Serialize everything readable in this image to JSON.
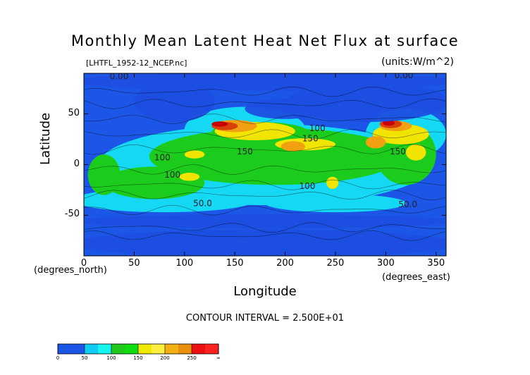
{
  "chart_data": {
    "type": "heatmap",
    "title": "Monthly Mean Latent Heat Net Flux at surface",
    "file_label": "[LHTFL_1952-12_NCEP.nc]",
    "units_label": "(units:W/m^2)",
    "xlabel": "Longitude",
    "ylabel": "Latitude",
    "x_units": "(degrees_east)",
    "y_units": "(degrees_north)",
    "xlim": [
      0,
      360
    ],
    "ylim": [
      -90,
      90
    ],
    "x_ticks": [
      "0",
      "50",
      "100",
      "150",
      "200",
      "250",
      "300",
      "350"
    ],
    "x_tick_values": [
      0,
      50,
      100,
      150,
      200,
      250,
      300,
      350
    ],
    "y_ticks": [
      "50",
      "0",
      "-50"
    ],
    "y_tick_values": [
      50,
      0,
      -50
    ],
    "contour_interval_text": "CONTOUR INTERVAL = 2.500E+01",
    "contour_labels": [
      {
        "text": "0.00",
        "lon": 35,
        "lat": 84
      },
      {
        "text": "0.00",
        "lon": 300,
        "lat": 90
      },
      {
        "text": "0.00",
        "lon": 318,
        "lat": 85
      },
      {
        "text": "150",
        "lon": 160,
        "lat": 10
      },
      {
        "text": "150",
        "lon": 225,
        "lat": 23
      },
      {
        "text": "150",
        "lon": 312,
        "lat": 10
      },
      {
        "text": "100",
        "lon": 78,
        "lat": 4
      },
      {
        "text": "100",
        "lon": 88,
        "lat": -13
      },
      {
        "text": "100",
        "lon": 232,
        "lat": 33
      },
      {
        "text": "100",
        "lon": 222,
        "lat": -24
      },
      {
        "text": "50.0",
        "lon": 118,
        "lat": -41
      },
      {
        "text": "50.0",
        "lon": 322,
        "lat": -42
      }
    ],
    "colorbar": {
      "levels": [
        "0",
        "50",
        "100",
        "150",
        "200",
        "250",
        "∞"
      ],
      "colors": [
        "#1c56e6",
        "#1c56e6",
        "#10ccf2",
        "#16f4ee",
        "#22c81c",
        "#10dc10",
        "#f0ea00",
        "#ffee40",
        "#f2b012",
        "#e8900c",
        "#ee1010",
        "#ff2020"
      ]
    },
    "palette": {
      "ocean_low": "#1c56e6",
      "land": "#1e4ee2",
      "b50": "#14d8f4",
      "b100": "#1ccc1c",
      "b150": "#f0e400",
      "b200": "#f0a010",
      "b250": "#d84008",
      "b275": "#c80000"
    },
    "blobs": [
      {
        "band": "b50",
        "lon": 180,
        "lat": 0,
        "rx": 165,
        "ry": 40
      },
      {
        "band": "b50",
        "lon": 160,
        "lat": 35,
        "rx": 60,
        "ry": 22
      },
      {
        "band": "b50",
        "lon": 320,
        "lat": 30,
        "rx": 40,
        "ry": 25
      },
      {
        "band": "b50",
        "lon": 80,
        "lat": -35,
        "rx": 90,
        "ry": 12
      },
      {
        "band": "b50",
        "lon": 250,
        "lat": -38,
        "rx": 70,
        "ry": 9
      },
      {
        "band": "b100",
        "lon": 190,
        "lat": 8,
        "rx": 125,
        "ry": 28
      },
      {
        "band": "b100",
        "lon": 70,
        "lat": -18,
        "rx": 50,
        "ry": 16
      },
      {
        "band": "b100",
        "lon": 20,
        "lat": -10,
        "rx": 16,
        "ry": 20
      },
      {
        "band": "b100",
        "lon": 320,
        "lat": 10,
        "rx": 30,
        "ry": 30
      },
      {
        "band": "b100",
        "lon": 175,
        "lat": 32,
        "rx": 48,
        "ry": 10
      },
      {
        "band": "b150",
        "lon": 170,
        "lat": 33,
        "rx": 40,
        "ry": 9
      },
      {
        "band": "b150",
        "lon": 220,
        "lat": 20,
        "rx": 30,
        "ry": 6
      },
      {
        "band": "b150",
        "lon": 315,
        "lat": 30,
        "rx": 28,
        "ry": 10
      },
      {
        "band": "b150",
        "lon": 330,
        "lat": 12,
        "rx": 10,
        "ry": 8
      },
      {
        "band": "b150",
        "lon": 105,
        "lat": -12,
        "rx": 10,
        "ry": 4
      },
      {
        "band": "b150",
        "lon": 247,
        "lat": -18,
        "rx": 6,
        "ry": 6
      },
      {
        "band": "b150",
        "lon": 110,
        "lat": 10,
        "rx": 10,
        "ry": 4
      },
      {
        "band": "b200",
        "lon": 208,
        "lat": 18,
        "rx": 12,
        "ry": 5
      },
      {
        "band": "b200",
        "lon": 290,
        "lat": 22,
        "rx": 10,
        "ry": 6
      },
      {
        "band": "b200",
        "lon": 150,
        "lat": 38,
        "rx": 22,
        "ry": 6
      },
      {
        "band": "b200",
        "lon": 310,
        "lat": 38,
        "rx": 16,
        "ry": 5
      },
      {
        "band": "b250",
        "lon": 140,
        "lat": 38,
        "rx": 13,
        "ry": 4
      },
      {
        "band": "b250",
        "lon": 305,
        "lat": 40,
        "rx": 11,
        "ry": 4
      },
      {
        "band": "b275",
        "lon": 135,
        "lat": 40,
        "rx": 8,
        "ry": 2.6
      },
      {
        "band": "b275",
        "lon": 303,
        "lat": 41,
        "rx": 6,
        "ry": 2.6
      }
    ],
    "lowflux_regions": [
      {
        "name": "north-america",
        "lon": 90,
        "lat": 62,
        "rx": 40,
        "ry": 20
      },
      {
        "name": "eurasia",
        "lon": 282,
        "lat": 62,
        "rx": 80,
        "ry": 20
      },
      {
        "name": "arctic",
        "lon": 180,
        "lat": 82,
        "rx": 190,
        "ry": 9
      },
      {
        "name": "antarctica",
        "lon": 180,
        "lat": -78,
        "rx": 190,
        "ry": 14
      },
      {
        "name": "southern-ocean",
        "lon": 180,
        "lat": -56,
        "rx": 190,
        "ry": 7
      },
      {
        "name": "north-pacific",
        "lon": 200,
        "lat": 55,
        "rx": 40,
        "ry": 10
      }
    ]
  }
}
